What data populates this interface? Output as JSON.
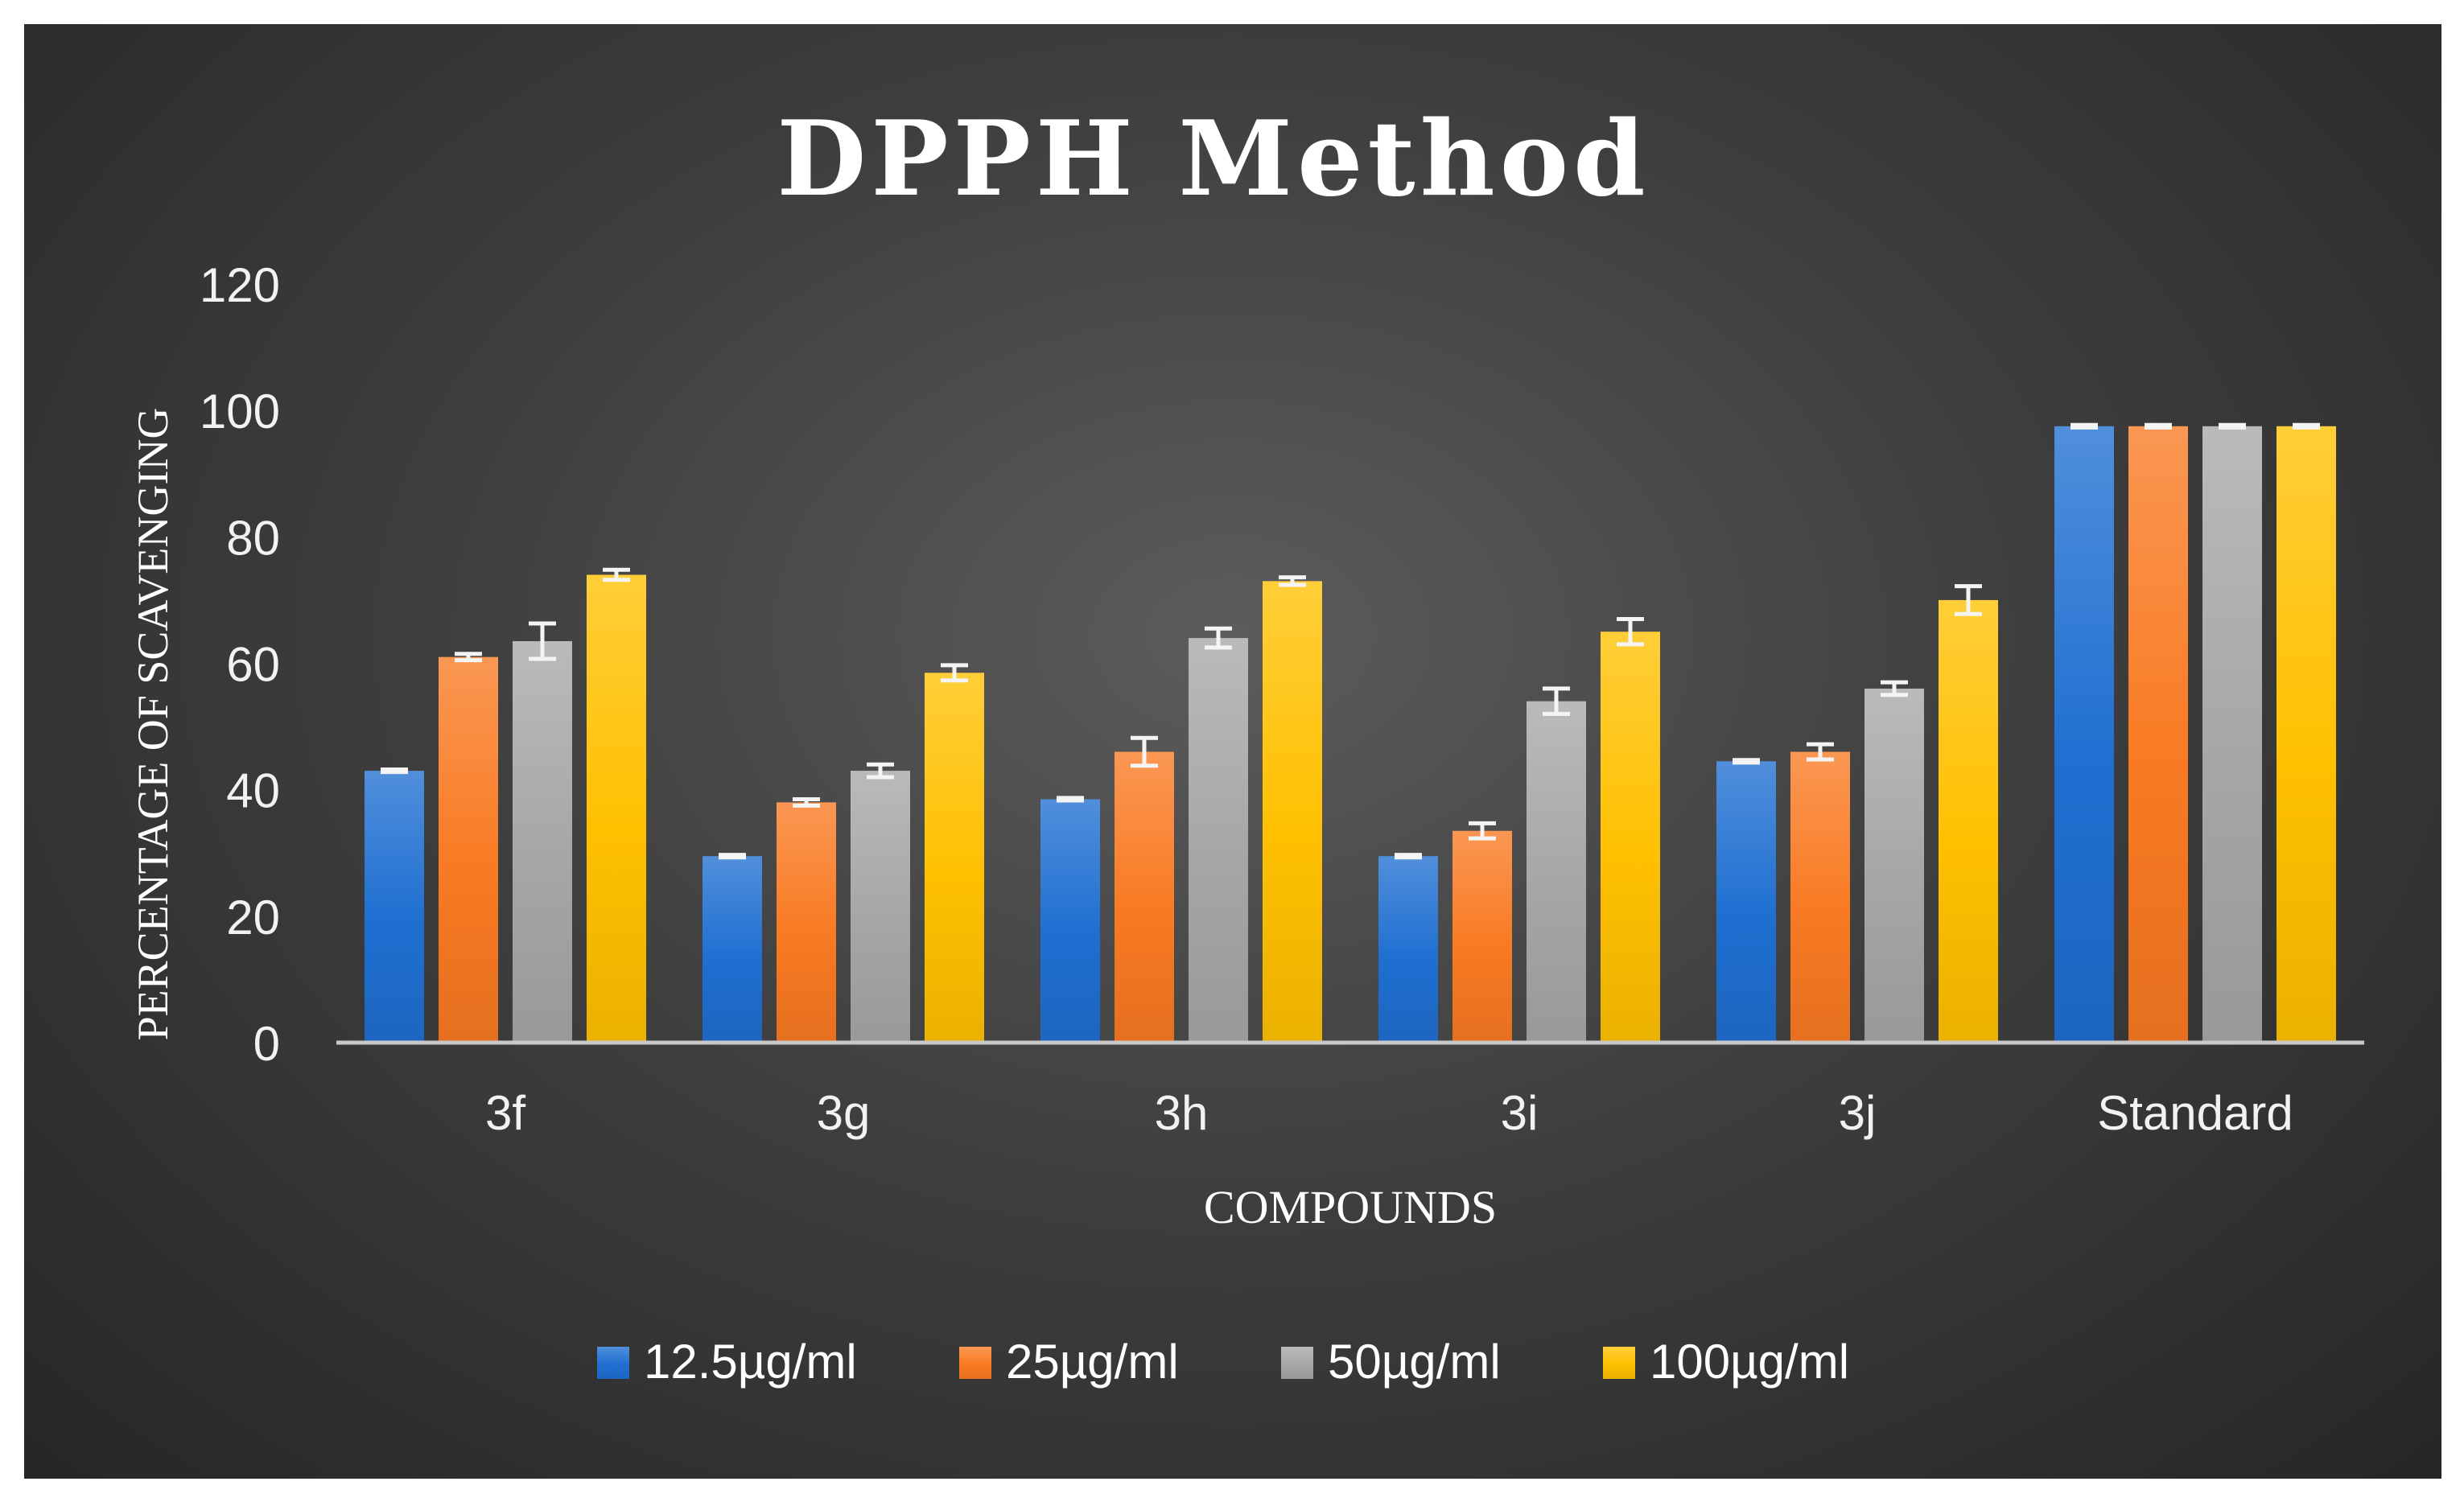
{
  "chart_data": {
    "type": "bar",
    "title": "DPPH Method",
    "xlabel": "COMPOUNDS",
    "ylabel": "PERCENTAGE OF SCAVENGING",
    "ylim": [
      0,
      120
    ],
    "yticks": [
      0,
      20,
      40,
      60,
      80,
      100,
      120
    ],
    "grid": false,
    "legend_position": "bottom",
    "categories": [
      "3f",
      "3g",
      "3h",
      "3i",
      "3j",
      "Standard"
    ],
    "series": [
      {
        "name": "12.5µg/ml",
        "color": "#1f6fd1",
        "values": [
          43,
          29.5,
          38.5,
          29.5,
          44.5,
          97.5
        ],
        "errors": [
          0.2,
          0.2,
          0.2,
          0.2,
          0.2,
          0.2
        ]
      },
      {
        "name": "25µg/ml",
        "color": "#f97a22",
        "values": [
          61,
          38,
          46,
          33.5,
          46,
          97.5
        ],
        "errors": [
          0.5,
          0.5,
          2.2,
          1.2,
          1.2,
          0.2
        ]
      },
      {
        "name": "50µg/ml",
        "color": "#a6a6a6",
        "values": [
          63.5,
          43,
          64,
          54,
          56,
          97.5
        ],
        "errors": [
          2.8,
          1.0,
          1.5,
          2.0,
          1.0,
          0.2
        ]
      },
      {
        "name": "100µg/ml",
        "color": "#ffc000",
        "values": [
          74,
          58.5,
          73,
          65,
          70,
          97.5
        ],
        "errors": [
          0.8,
          1.2,
          0.6,
          2.0,
          2.2,
          0.2
        ]
      }
    ]
  }
}
